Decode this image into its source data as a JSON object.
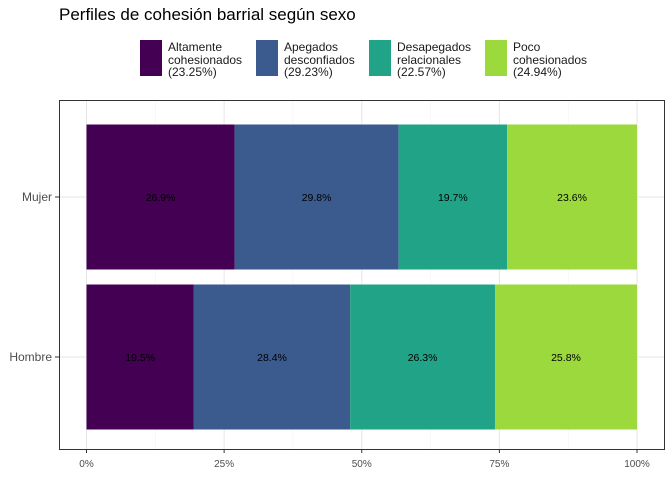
{
  "chart_data": {
    "type": "bar",
    "orientation": "horizontal",
    "stacked": true,
    "title": "Perfiles de cohesión barrial según sexo",
    "categories": [
      "Mujer",
      "Hombre"
    ],
    "series": [
      {
        "name": "Altamente cohesionados (23.25%)",
        "legend_lines": [
          "Altamente",
          "cohesionados",
          "(23.25%)"
        ],
        "color": "#440154",
        "values": [
          26.9,
          19.5
        ],
        "labels": [
          "26.9%",
          "19.5%"
        ]
      },
      {
        "name": "Apegados desconfiados (29.23%)",
        "legend_lines": [
          "Apegados",
          "desconfiados",
          "(29.23%)"
        ],
        "color": "#3B5A8E",
        "values": [
          29.8,
          28.4
        ],
        "labels": [
          "29.8%",
          "28.4%"
        ]
      },
      {
        "name": "Desapegados relacionales (22.57%)",
        "legend_lines": [
          "Desapegados",
          "relacionales",
          "(22.57%)"
        ],
        "color": "#20A386",
        "values": [
          19.7,
          26.3
        ],
        "labels": [
          "19.7%",
          "26.3%"
        ]
      },
      {
        "name": "Poco cohesionados (24.94%)",
        "legend_lines": [
          "Poco",
          "cohesionados",
          "(24.94%)"
        ],
        "color": "#9BD93C",
        "values": [
          23.6,
          25.8
        ],
        "labels": [
          "23.6%",
          "25.8%"
        ]
      }
    ],
    "x_ticks": [
      0,
      25,
      50,
      75,
      100
    ],
    "x_tick_labels": [
      "0%",
      "25%",
      "50%",
      "75%",
      "100%"
    ],
    "xlim": [
      0,
      100
    ],
    "xlabel": "",
    "ylabel": "",
    "legend_position": "top",
    "grid": true
  }
}
